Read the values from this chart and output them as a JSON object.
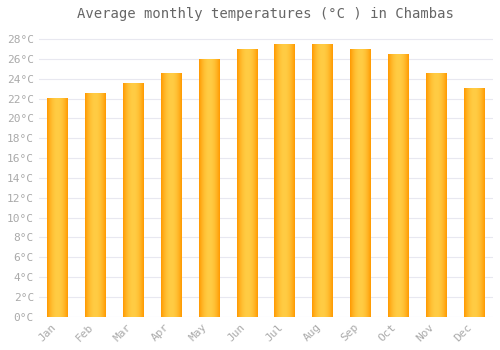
{
  "title": "Average monthly temperatures (°C ) in Chambas",
  "months": [
    "Jan",
    "Feb",
    "Mar",
    "Apr",
    "May",
    "Jun",
    "Jul",
    "Aug",
    "Sep",
    "Oct",
    "Nov",
    "Dec"
  ],
  "values": [
    22,
    22.5,
    23.5,
    24.5,
    26,
    27,
    27.5,
    27.5,
    27,
    26.5,
    24.5,
    23
  ],
  "bar_color_center": "#FFCC44",
  "bar_color_edge": "#FF9900",
  "background_color": "#FFFFFF",
  "grid_color": "#E8E8F0",
  "text_color": "#AAAAAA",
  "title_color": "#666666",
  "ylim_min": 0,
  "ylim_max": 29,
  "ytick_step": 2,
  "title_fontsize": 10,
  "tick_fontsize": 8,
  "font_family": "monospace",
  "bar_width": 0.55
}
